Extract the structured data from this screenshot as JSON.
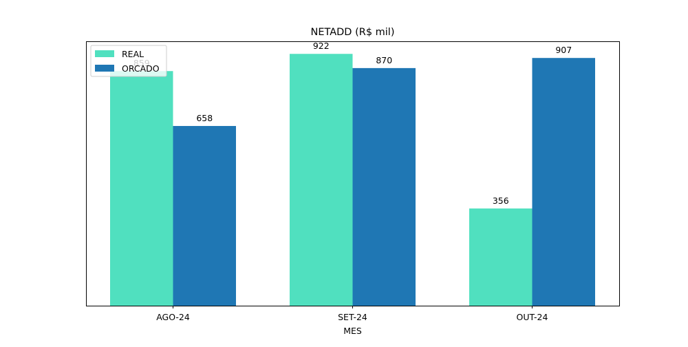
{
  "chart_data": {
    "type": "bar",
    "title": "NETADD (R$ mil)",
    "xlabel": "MES",
    "ylabel": "",
    "categories": [
      "AGO-24",
      "SET-24",
      "OUT-24"
    ],
    "series": [
      {
        "name": "REAL",
        "values": [
          859,
          922,
          356
        ],
        "color": "#50e0bf"
      },
      {
        "name": "ORCADO",
        "values": [
          658,
          870,
          907
        ],
        "color": "#1f77b4"
      }
    ],
    "ylim": [
      0,
      968
    ],
    "y_axis_visible": false,
    "grid": false,
    "legend": {
      "position": "top-left"
    }
  }
}
